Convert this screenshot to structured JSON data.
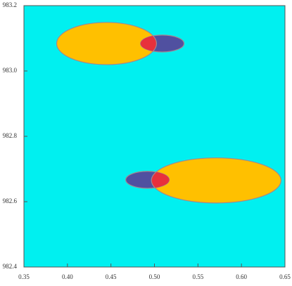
{
  "chart_data": {
    "type": "ellipse",
    "background": "#00f0f0",
    "edge_color": "#a08890",
    "overlap_color": "#e8303c",
    "groups": [
      {
        "color": "#ffc000",
        "ellipses": [
          {
            "cx": 0.445,
            "cy": 983.084,
            "rx": 0.0574,
            "ry": 0.0645
          },
          {
            "cx": 0.571,
            "cy": 982.665,
            "rx": 0.0745,
            "ry": 0.069
          }
        ]
      },
      {
        "color": "#5050a0",
        "ellipses": [
          {
            "cx": 0.509,
            "cy": 983.084,
            "rx": 0.025,
            "ry": 0.026
          },
          {
            "cx": 0.492,
            "cy": 982.667,
            "rx": 0.025,
            "ry": 0.026
          }
        ]
      }
    ],
    "xlim": [
      0.35,
      0.65
    ],
    "ylim": [
      982.4,
      983.2
    ],
    "xticks": [
      0.35,
      {
        "value": 0.4,
        "label": "0.40"
      },
      0.45,
      {
        "value": 0.5,
        "label": "0.50"
      },
      0.55,
      {
        "value": 0.6,
        "label": "0.60"
      },
      0.65
    ],
    "yticks": [
      982.4,
      982.6,
      982.8,
      {
        "value": 983,
        "label": "983.0"
      },
      983.2
    ]
  }
}
